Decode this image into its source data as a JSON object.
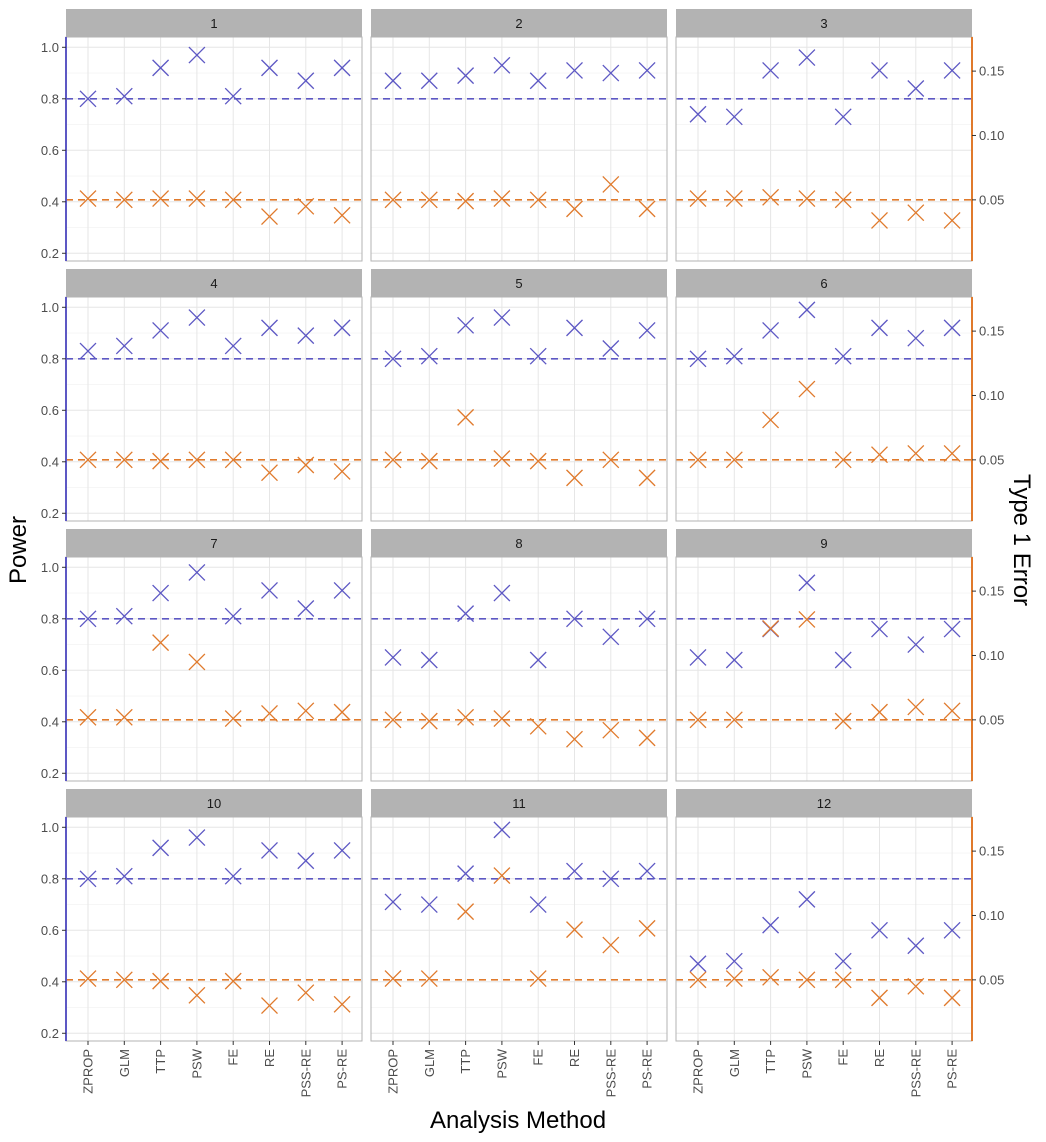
{
  "chart_data": {
    "type": "scatter",
    "xlabel": "Analysis Method",
    "ylabel": "Power",
    "y2label": "Type 1 Error",
    "categories": [
      "ZPROP",
      "GLM",
      "TTP",
      "PSW",
      "FE",
      "RE",
      "PSS-RE",
      "PS-RE"
    ],
    "ylim": [
      0.17,
      1.04
    ],
    "yticks": [
      0.2,
      0.4,
      0.6,
      0.8,
      1.0
    ],
    "ytick_labels": [
      "0.2",
      "0.4",
      "0.6",
      "0.8",
      "1.0"
    ],
    "y2lim": [
      0.0025,
      0.1765
    ],
    "y2ticks": [
      0.05,
      0.1,
      0.15
    ],
    "y2tick_labels": [
      "0.05",
      "0.10",
      "0.15"
    ],
    "power_reference": 0.8,
    "type1_reference": 0.05,
    "grid": true,
    "colors": {
      "power": "#5d58c4",
      "type1": "#e07a2c",
      "strip_background": "#b3b3b3",
      "grid": "#e6e6e6",
      "panel_border": "#b3b3b3"
    },
    "panels": [
      {
        "label": "1",
        "power": [
          0.8,
          0.81,
          0.92,
          0.97,
          0.81,
          0.92,
          0.87,
          0.92
        ],
        "type1": [
          0.051,
          0.05,
          0.051,
          0.051,
          0.05,
          0.037,
          0.045,
          0.038
        ]
      },
      {
        "label": "2",
        "power": [
          0.87,
          0.87,
          0.89,
          0.93,
          0.87,
          0.91,
          0.9,
          0.91
        ],
        "type1": [
          0.05,
          0.05,
          0.049,
          0.051,
          0.05,
          0.043,
          0.062,
          0.043
        ]
      },
      {
        "label": "3",
        "power": [
          0.74,
          0.73,
          0.91,
          0.96,
          0.73,
          0.91,
          0.84,
          0.91
        ],
        "type1": [
          0.051,
          0.051,
          0.052,
          0.051,
          0.05,
          0.034,
          0.04,
          0.034
        ]
      },
      {
        "label": "4",
        "power": [
          0.83,
          0.85,
          0.91,
          0.96,
          0.85,
          0.92,
          0.89,
          0.92
        ],
        "type1": [
          0.05,
          0.05,
          0.049,
          0.05,
          0.05,
          0.04,
          0.046,
          0.041
        ]
      },
      {
        "label": "5",
        "power": [
          0.8,
          0.81,
          0.93,
          0.96,
          0.81,
          0.92,
          0.84,
          0.91
        ],
        "type1": [
          0.05,
          0.049,
          0.083,
          0.051,
          0.049,
          0.036,
          0.05,
          0.036
        ]
      },
      {
        "label": "6",
        "power": [
          0.8,
          0.81,
          0.91,
          0.99,
          0.81,
          0.92,
          0.88,
          0.92
        ],
        "type1": [
          0.05,
          0.05,
          0.081,
          0.105,
          0.05,
          0.054,
          0.055,
          0.055
        ]
      },
      {
        "label": "7",
        "power": [
          0.8,
          0.81,
          0.9,
          0.98,
          0.81,
          0.91,
          0.84,
          0.91
        ],
        "type1": [
          0.052,
          0.052,
          0.11,
          0.095,
          0.051,
          0.055,
          0.057,
          0.056
        ]
      },
      {
        "label": "8",
        "power": [
          0.65,
          0.64,
          0.82,
          0.9,
          0.64,
          0.8,
          0.73,
          0.8
        ],
        "type1": [
          0.05,
          0.049,
          0.052,
          0.051,
          0.045,
          0.035,
          0.042,
          0.036
        ]
      },
      {
        "label": "9",
        "power": [
          0.65,
          0.64,
          0.76,
          0.94,
          0.64,
          0.76,
          0.7,
          0.76
        ],
        "type1": [
          0.05,
          0.05,
          0.121,
          0.128,
          0.049,
          0.056,
          0.06,
          0.057
        ]
      },
      {
        "label": "10",
        "power": [
          0.8,
          0.81,
          0.92,
          0.96,
          0.81,
          0.91,
          0.87,
          0.91
        ],
        "type1": [
          0.051,
          0.05,
          0.049,
          0.038,
          0.049,
          0.03,
          0.04,
          0.031
        ]
      },
      {
        "label": "11",
        "power": [
          0.71,
          0.7,
          0.82,
          0.99,
          0.7,
          0.83,
          0.8,
          0.83
        ],
        "type1": [
          0.051,
          0.051,
          0.103,
          0.131,
          0.051,
          0.089,
          0.077,
          0.09
        ]
      },
      {
        "label": "12",
        "power": [
          0.47,
          0.48,
          0.62,
          0.72,
          0.48,
          0.6,
          0.54,
          0.6
        ],
        "type1": [
          0.05,
          0.051,
          0.052,
          0.05,
          0.05,
          0.036,
          0.045,
          0.036
        ]
      }
    ]
  }
}
